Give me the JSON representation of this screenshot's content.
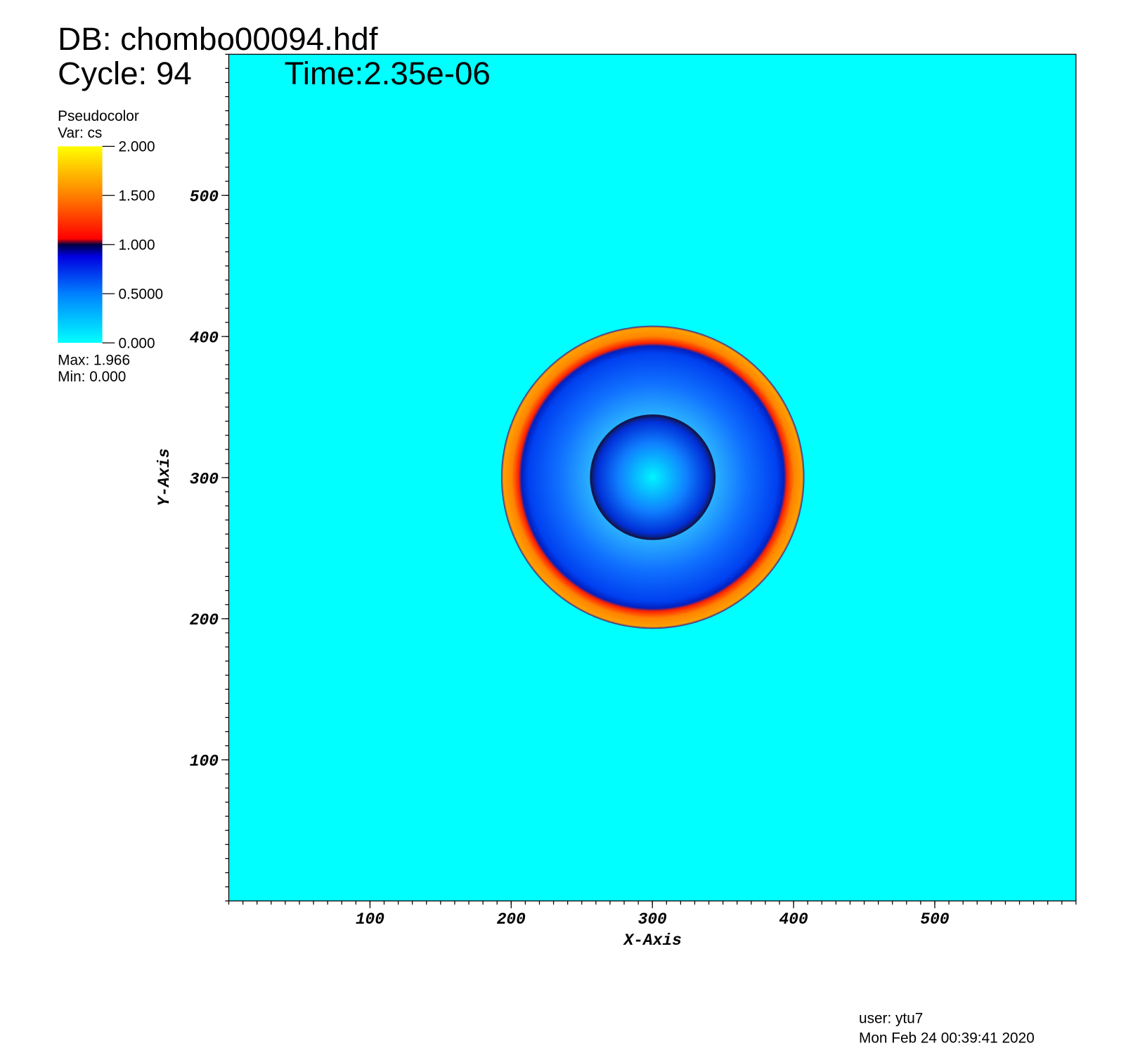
{
  "chart_data": {
    "type": "pseudocolor",
    "title": "DB: chombo00094.hdf",
    "cycle": "Cycle: 94",
    "time": "Time:2.35e-06",
    "legend_title": "Pseudocolor",
    "legend_var": "Var: cs",
    "legend_max": "Max:  1.966",
    "legend_min": "Min:  0.000",
    "xlabel": "X-Axis",
    "ylabel": "Y-Axis",
    "user": "user: ytu7",
    "date": "Mon Feb 24 00:39:41 2020",
    "xlim": [
      0,
      600
    ],
    "ylim": [
      0,
      600
    ],
    "xticks": [
      100,
      200,
      300,
      400,
      500
    ],
    "yticks": [
      100,
      200,
      300,
      400,
      500
    ],
    "background_color": "#00ffff",
    "colorbar": {
      "range": [
        0,
        2
      ],
      "ticks": [
        {
          "value": 0,
          "label": "0.000"
        },
        {
          "value": 0.5,
          "label": "0.5000"
        },
        {
          "value": 1,
          "label": "1.000"
        },
        {
          "value": 1.5,
          "label": "1.500"
        },
        {
          "value": 2,
          "label": "2.000"
        }
      ]
    }
  }
}
